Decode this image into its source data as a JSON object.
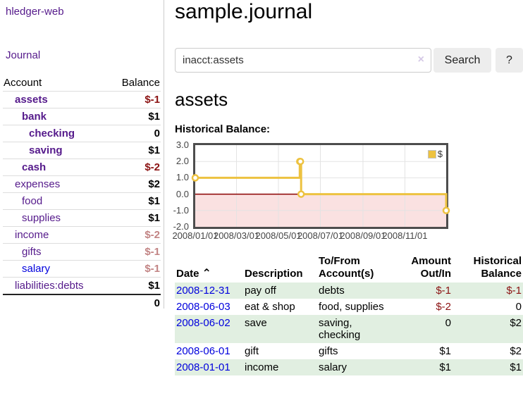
{
  "colors": {
    "link_purple": "#551a8b",
    "link_blue": "#0000dd",
    "negative_red": "#8b1212",
    "negative_muted_rose": "#c28484",
    "row_stripe_green": "#e1efe1",
    "chart_gold": "#edc240",
    "chart_negative_region": "#fae1e1",
    "chart_zero_line": "#8b0000"
  },
  "app": {
    "title": "hledger-web"
  },
  "sidebar": {
    "journal_label": "Journal",
    "accounts": {
      "account_header": "Account",
      "balance_header": "Balance",
      "rows": [
        {
          "name": "assets",
          "balance": "$-1",
          "depth": 0,
          "bold": true,
          "link": "purple",
          "balance_class": "neg-bold"
        },
        {
          "name": "bank",
          "balance": "$1",
          "depth": 1,
          "bold": true,
          "link": "purple",
          "balance_class": "pos-bold"
        },
        {
          "name": "checking",
          "balance": "0",
          "depth": 2,
          "bold": true,
          "link": "purple",
          "balance_class": "pos-bold"
        },
        {
          "name": "saving",
          "balance": "$1",
          "depth": 2,
          "bold": true,
          "link": "purple",
          "balance_class": "pos-bold"
        },
        {
          "name": "cash",
          "balance": "$-2",
          "depth": 1,
          "bold": true,
          "link": "purple",
          "balance_class": "neg-bold"
        },
        {
          "name": "expenses",
          "balance": "$2",
          "depth": 0,
          "bold": false,
          "link": "purple",
          "balance_class": "pos-bold"
        },
        {
          "name": "food",
          "balance": "$1",
          "depth": 1,
          "bold": false,
          "link": "purple",
          "balance_class": "pos-bold"
        },
        {
          "name": "supplies",
          "balance": "$1",
          "depth": 1,
          "bold": false,
          "link": "purple",
          "balance_class": "pos-bold"
        },
        {
          "name": "income",
          "balance": "$-2",
          "depth": 0,
          "bold": false,
          "link": "purple",
          "balance_class": "neg-muted"
        },
        {
          "name": "gifts",
          "balance": "$-1",
          "depth": 1,
          "bold": false,
          "link": "purple",
          "balance_class": "neg-muted"
        },
        {
          "name": "salary",
          "balance": "$-1",
          "depth": 1,
          "bold": false,
          "link": "blue",
          "balance_class": "neg-muted"
        },
        {
          "name": "liabilities:debts",
          "balance": "$1",
          "depth": 0,
          "bold": false,
          "link": "purple",
          "balance_class": "pos-bold"
        }
      ],
      "total": "0"
    }
  },
  "main": {
    "title": "sample.journal",
    "search": {
      "value": "inacct:assets",
      "clear_icon": "×",
      "search_label": "Search",
      "help_label": "?"
    },
    "account_heading": "assets"
  },
  "chart_data": {
    "type": "line",
    "title": "Historical Balance:",
    "legend_label": "$",
    "legend_position": "top-right",
    "grid": true,
    "x_start": "2008-01-01",
    "x_end": "2008-12-31",
    "ylim": [
      -2,
      3
    ],
    "yticks": [
      {
        "label": "3.0",
        "value": 3
      },
      {
        "label": "2.0",
        "value": 2
      },
      {
        "label": "1.0",
        "value": 1
      },
      {
        "label": "0.0",
        "value": 0
      },
      {
        "label": "-1.0",
        "value": -1
      },
      {
        "label": "-2.0",
        "value": -2
      }
    ],
    "xticks": [
      {
        "label": "2008/01/01"
      },
      {
        "label": "2008/03/01"
      },
      {
        "label": "2008/05/01"
      },
      {
        "label": "2008/07/01"
      },
      {
        "label": "2008/09/01"
      },
      {
        "label": "2008/11/01"
      }
    ],
    "series": [
      {
        "name": "$",
        "step": true,
        "points": [
          [
            "2008-01-01",
            1
          ],
          [
            "2008-06-01",
            2
          ],
          [
            "2008-06-02",
            2
          ],
          [
            "2008-06-03",
            0
          ],
          [
            "2008-12-31",
            -1
          ]
        ]
      }
    ]
  },
  "register": {
    "sort_icon": "⌃",
    "headers": [
      {
        "label": "Date",
        "align": "left",
        "sorted": true
      },
      {
        "label": "Description",
        "align": "left",
        "sorted": false
      },
      {
        "label": "To/From\nAccount(s)",
        "align": "left",
        "sorted": false
      },
      {
        "label": "Amount\nOut/In",
        "align": "right",
        "sorted": false
      },
      {
        "label": "Historical\nBalance",
        "align": "right",
        "sorted": false
      }
    ],
    "rows": [
      {
        "date": "2008-12-31",
        "description": "pay off",
        "accounts": "debts",
        "amount": "$-1",
        "amount_neg": true,
        "balance": "$-1",
        "balance_neg": true
      },
      {
        "date": "2008-06-03",
        "description": "eat & shop",
        "accounts": "food, supplies",
        "amount": "$-2",
        "amount_neg": true,
        "balance": "0",
        "balance_neg": false
      },
      {
        "date": "2008-06-02",
        "description": "save",
        "accounts": "saving,\nchecking",
        "amount": "0",
        "amount_neg": false,
        "balance": "$2",
        "balance_neg": false
      },
      {
        "date": "2008-06-01",
        "description": "gift",
        "accounts": "gifts",
        "amount": "$1",
        "amount_neg": false,
        "balance": "$2",
        "balance_neg": false
      },
      {
        "date": "2008-01-01",
        "description": "income",
        "accounts": "salary",
        "amount": "$1",
        "amount_neg": false,
        "balance": "$1",
        "balance_neg": false
      }
    ]
  }
}
